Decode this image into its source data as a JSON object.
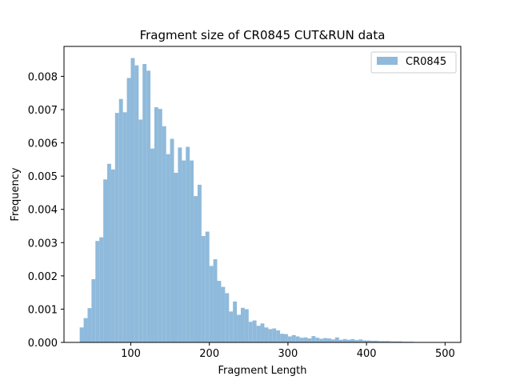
{
  "chart_data": {
    "type": "bar",
    "title": "Fragment size of CR0845 CUT&RUN data",
    "xlabel": "Fragment Length",
    "ylabel": "Frequency",
    "xlim": [
      15,
      520
    ],
    "ylim": [
      0,
      0.0089
    ],
    "x_ticks": [
      100,
      200,
      300,
      400,
      500
    ],
    "y_ticks": [
      0.0,
      0.001,
      0.002,
      0.003,
      0.004,
      0.005,
      0.006,
      0.007,
      0.008
    ],
    "y_tick_labels": [
      "0.000",
      "0.001",
      "0.002",
      "0.003",
      "0.004",
      "0.005",
      "0.006",
      "0.007",
      "0.008"
    ],
    "bin_start": 35,
    "bin_width": 5,
    "series": [
      {
        "name": "CR0845",
        "color": "#8fbadb",
        "values": [
          0.00045,
          0.00073,
          0.00103,
          0.0019,
          0.00305,
          0.00316,
          0.0049,
          0.00537,
          0.0052,
          0.0069,
          0.00732,
          0.00692,
          0.00795,
          0.00855,
          0.00833,
          0.0067,
          0.00837,
          0.00817,
          0.00583,
          0.00707,
          0.00702,
          0.0065,
          0.00566,
          0.00612,
          0.0051,
          0.00586,
          0.00547,
          0.00588,
          0.00547,
          0.0044,
          0.00474,
          0.0032,
          0.00333,
          0.0023,
          0.0025,
          0.00185,
          0.00167,
          0.00148,
          0.00093,
          0.00123,
          0.00083,
          0.00104,
          0.001,
          0.00062,
          0.00066,
          0.0005,
          0.00057,
          0.00045,
          0.0004,
          0.00042,
          0.00036,
          0.00026,
          0.00025,
          0.00018,
          0.00022,
          0.00018,
          0.00014,
          0.00015,
          0.00012,
          0.00019,
          0.00014,
          0.00011,
          0.00013,
          0.00012,
          9e-05,
          0.00015,
          8e-05,
          0.0001,
          8e-05,
          0.0001,
          7e-05,
          9e-05,
          6e-05,
          6e-05,
          5e-05,
          5e-05,
          4e-05,
          4e-05,
          4e-05,
          3e-05,
          3e-05,
          3e-05,
          2e-05,
          2e-05,
          2e-05,
          1e-05,
          1e-05,
          1e-05,
          1e-05,
          1e-05,
          1e-05,
          1e-05,
          1e-05
        ]
      }
    ],
    "legend": {
      "placement": "top-right"
    },
    "grid": false
  }
}
